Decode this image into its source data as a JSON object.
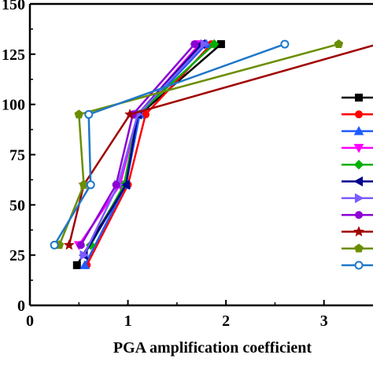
{
  "chart_data": {
    "type": "line",
    "xlabel": "PGA amplification coefficient",
    "ylabel": "",
    "title": "",
    "xlim": [
      0,
      3.5
    ],
    "ylim": [
      0,
      150
    ],
    "x_ticks": [
      "0",
      "1",
      "2",
      "3"
    ],
    "y_ticks": [
      "0",
      "25",
      "50",
      "75",
      "100",
      "125",
      "150"
    ],
    "x_tick_values": [
      0,
      1,
      2,
      3
    ],
    "y_tick_values": [
      0,
      25,
      50,
      75,
      100,
      125,
      150
    ],
    "grid": false,
    "legend": "right (entries cut off, no visible labels)",
    "series": [
      {
        "color": "#000000",
        "marker": "square",
        "x": [
          0.48,
          0.97,
          1.12,
          1.95
        ],
        "y": [
          20,
          60,
          95,
          130
        ]
      },
      {
        "color": "#ff0000",
        "marker": "circle",
        "x": [
          0.58,
          1.0,
          1.18,
          1.85
        ],
        "y": [
          20,
          60,
          95,
          130
        ]
      },
      {
        "color": "#1e5bff",
        "marker": "triangle-up",
        "x": [
          0.56,
          0.98,
          1.12,
          1.8
        ],
        "y": [
          20,
          60,
          95,
          130
        ]
      },
      {
        "color": "#ff00ff",
        "marker": "triangle-down",
        "x": [
          0.5,
          0.92,
          1.1,
          1.73
        ],
        "y": [
          30,
          60,
          95,
          130
        ]
      },
      {
        "color": "#00b000",
        "marker": "diamond",
        "x": [
          0.62,
          0.96,
          1.1,
          1.88
        ],
        "y": [
          30,
          60,
          95,
          130
        ]
      },
      {
        "color": "#00008b",
        "marker": "triangle-left",
        "x": [
          0.55,
          0.98,
          1.1,
          1.75
        ],
        "y": [
          25,
          60,
          95,
          130
        ]
      },
      {
        "color": "#7b5cff",
        "marker": "triangle-right",
        "x": [
          0.55,
          0.9,
          1.1,
          1.78
        ],
        "y": [
          25,
          60,
          95,
          130
        ]
      },
      {
        "color": "#8b00d4",
        "marker": "circle",
        "x": [
          0.52,
          0.88,
          1.05,
          1.68
        ],
        "y": [
          30,
          60,
          95,
          130
        ]
      },
      {
        "color": "#a00000",
        "marker": "star",
        "x": [
          0.4,
          0.55,
          1.02,
          3.55
        ],
        "y": [
          30,
          60,
          95,
          130
        ]
      },
      {
        "color": "#6b8e00",
        "marker": "pentagon",
        "x": [
          0.3,
          0.55,
          0.5,
          3.15
        ],
        "y": [
          30,
          60,
          95,
          130
        ]
      },
      {
        "color": "#1e78c8",
        "marker": "hex-open",
        "x": [
          0.25,
          0.62,
          0.6,
          2.6
        ],
        "y": [
          30,
          60,
          95,
          130
        ]
      }
    ]
  }
}
